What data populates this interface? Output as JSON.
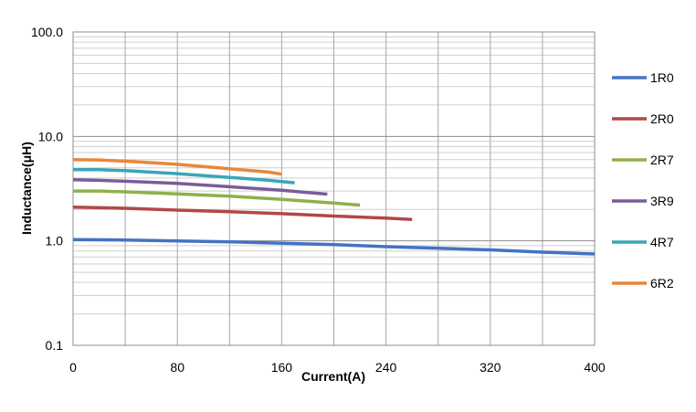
{
  "chart_data": {
    "type": "line",
    "title": "",
    "xlabel": "Current(A)",
    "ylabel": "Inductance(μH)",
    "xlim": [
      0,
      400
    ],
    "ylim": [
      0.1,
      100
    ],
    "y_scale": "log",
    "x_ticks": [
      0,
      80,
      160,
      240,
      320,
      400
    ],
    "x_tick_labels": [
      "0",
      "80",
      "160",
      "240",
      "320",
      "400"
    ],
    "y_ticks": [
      0.1,
      1,
      10,
      100
    ],
    "y_tick_labels": [
      "0.1",
      "1.0",
      "10.0",
      "100.0"
    ],
    "grid": true,
    "legend_position": "right",
    "series": [
      {
        "name": "1R0",
        "color": "#4472c4",
        "x": [
          0,
          40,
          80,
          120,
          160,
          200,
          240,
          280,
          320,
          360,
          400
        ],
        "y": [
          1.03,
          1.02,
          1.0,
          0.98,
          0.95,
          0.92,
          0.88,
          0.85,
          0.82,
          0.78,
          0.75
        ]
      },
      {
        "name": "2R0",
        "color": "#b34747",
        "x": [
          0,
          40,
          80,
          120,
          160,
          200,
          240,
          260
        ],
        "y": [
          2.1,
          2.05,
          1.97,
          1.9,
          1.82,
          1.73,
          1.65,
          1.6
        ]
      },
      {
        "name": "2R7",
        "color": "#8fb04b",
        "x": [
          0,
          20,
          40,
          80,
          120,
          160,
          200,
          220
        ],
        "y": [
          3.0,
          3.0,
          2.95,
          2.82,
          2.68,
          2.5,
          2.3,
          2.2
        ]
      },
      {
        "name": "3R9",
        "color": "#7a5c99",
        "x": [
          0,
          20,
          40,
          80,
          120,
          160,
          180,
          195
        ],
        "y": [
          3.85,
          3.8,
          3.72,
          3.55,
          3.3,
          3.05,
          2.9,
          2.8
        ]
      },
      {
        "name": "4R7",
        "color": "#3aa5b7",
        "x": [
          0,
          20,
          40,
          80,
          120,
          150,
          170
        ],
        "y": [
          4.8,
          4.8,
          4.7,
          4.4,
          4.05,
          3.8,
          3.6
        ]
      },
      {
        "name": "6R2",
        "color": "#e8873a",
        "x": [
          0,
          20,
          40,
          80,
          120,
          150,
          160
        ],
        "y": [
          6.0,
          5.95,
          5.8,
          5.4,
          4.9,
          4.55,
          4.35
        ]
      }
    ]
  }
}
